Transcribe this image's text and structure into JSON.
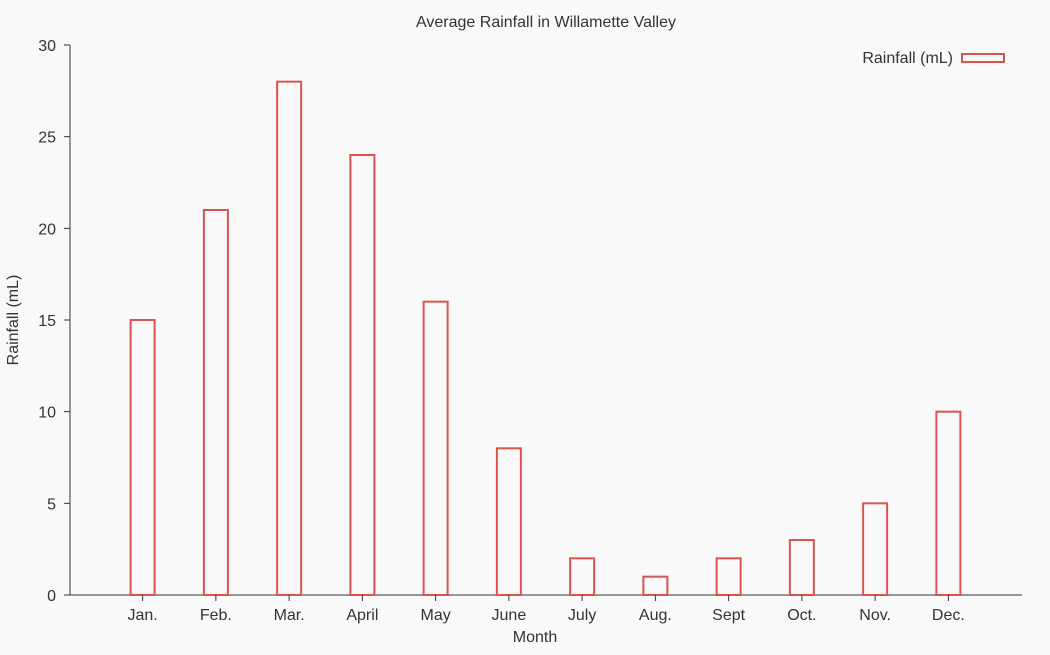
{
  "chart_data": {
    "type": "bar",
    "title": "Average Rainfall in Willamette Valley",
    "xlabel": "Month",
    "ylabel": "Rainfall (mL)",
    "categories": [
      "Jan.",
      "Feb.",
      "Mar.",
      "April",
      "May",
      "June",
      "July",
      "Aug.",
      "Sept",
      "Oct.",
      "Nov.",
      "Dec."
    ],
    "series": [
      {
        "name": "Rainfall (mL)",
        "values": [
          15,
          21,
          28,
          24,
          16,
          8,
          2,
          1,
          2,
          3,
          5,
          10
        ]
      }
    ],
    "ylim": [
      0,
      30
    ],
    "yticks": [
      0,
      5,
      10,
      15,
      20,
      25,
      30
    ],
    "grid": false,
    "legend_position": "top-right",
    "bar_style": "outline",
    "colors": {
      "bar_stroke": "#d9534f",
      "bar_fill": "#f9f9f9",
      "axis": "#333333",
      "text": "#333333",
      "background": "#f9f9f9"
    }
  }
}
